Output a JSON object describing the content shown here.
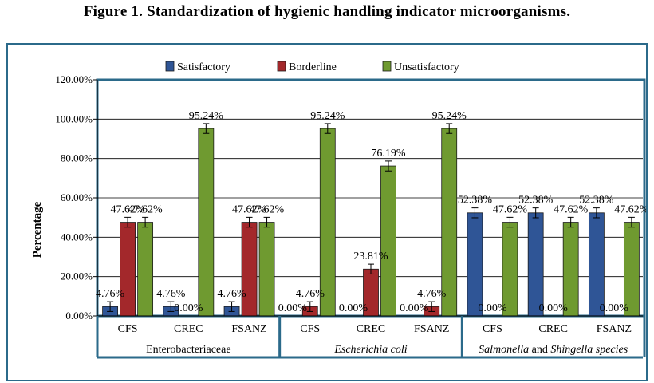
{
  "figure_title": "Figure 1. Standardization of hygienic handling indicator microorganisms.",
  "colors": {
    "frame": "#2b6a8a",
    "gridline": "#000000",
    "satisfactory": "#2f5596",
    "borderline": "#a3282b",
    "unsatisfactory": "#6f9a30"
  },
  "chart_data": {
    "type": "bar",
    "ylabel": "Percentage",
    "xlabel": "",
    "ylim": [
      0,
      120
    ],
    "y_ticks": [
      "0.00%",
      "20.00%",
      "40.00%",
      "60.00%",
      "80.00%",
      "100.00%",
      "120.00%"
    ],
    "grid": true,
    "legend_position": "top-center",
    "groups": [
      {
        "label": "Enterobacteriaceae",
        "italic": false
      },
      {
        "label": "Escherichia coli",
        "italic": true
      },
      {
        "label": "Salmonella and Shingella species",
        "italic": "partial"
      }
    ],
    "categories": [
      "CFS",
      "CREC",
      "FSANZ",
      "CFS",
      "CREC",
      "FSANZ",
      "CFS",
      "CREC",
      "FSANZ"
    ],
    "series": [
      {
        "name": "Satisfactory",
        "values": [
          4.76,
          4.76,
          4.76,
          0,
          0,
          0,
          52.38,
          52.38,
          52.38
        ],
        "labels": [
          "4.76%",
          "4.76%",
          "4.76%",
          "0.00%",
          "0.00%",
          "0.00%",
          "52.38%",
          "52.38%",
          "52.38%"
        ]
      },
      {
        "name": "Borderline",
        "values": [
          47.62,
          0,
          47.62,
          4.76,
          23.81,
          4.76,
          0,
          0,
          0
        ],
        "labels": [
          "47.62%",
          "0.00%",
          "47.62%",
          "4.76%",
          "23.81%",
          "4.76%",
          "0.00%",
          "0.00%",
          "0.00%"
        ]
      },
      {
        "name": "Unsatisfactory",
        "values": [
          47.62,
          95.24,
          47.62,
          95.24,
          76.19,
          95.24,
          47.62,
          47.62,
          47.62
        ],
        "labels": [
          "47.62%",
          "95.24%",
          "47.62%",
          "95.24%",
          "76.19%",
          "95.24%",
          "47.62%",
          "47.62%",
          "47.62%"
        ]
      }
    ],
    "error_bars": "±2.5%"
  }
}
